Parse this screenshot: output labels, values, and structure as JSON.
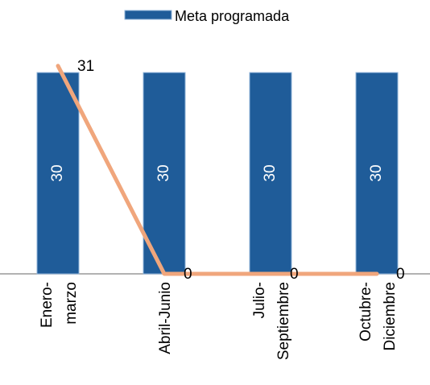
{
  "chart_data": {
    "type": "bar",
    "categories": [
      "Enero-\nmarzo",
      "Abril-Junio",
      "Julio-\nSeptiembre",
      "Octubre-\nDiciembre"
    ],
    "series": [
      {
        "name": "Meta programada",
        "type": "bar",
        "color": "#1f5c99",
        "values": [
          30,
          30,
          30,
          30
        ]
      },
      {
        "type": "line",
        "color": "#f0a67c",
        "values": [
          31,
          0,
          0,
          0
        ]
      }
    ],
    "ylim": [
      0,
      35
    ],
    "legend": "top"
  }
}
